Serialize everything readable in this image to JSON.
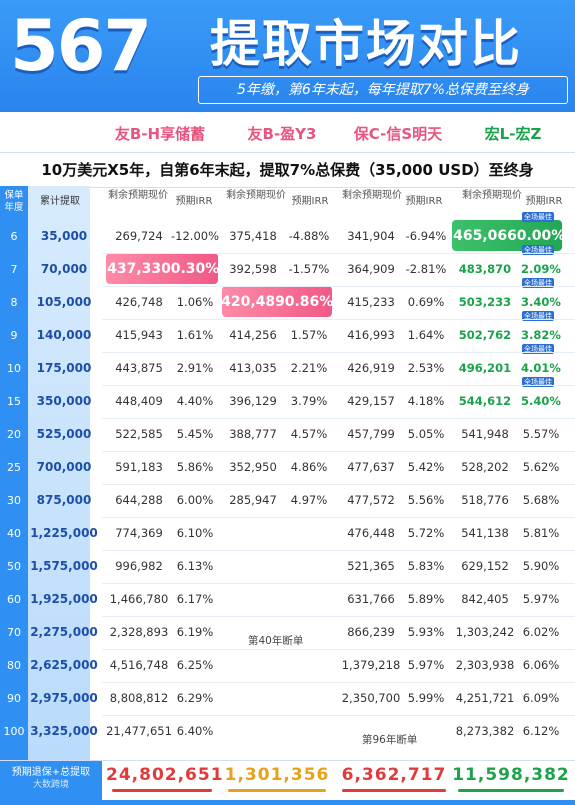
{
  "header": {
    "number": "567",
    "title": "提取市场对比",
    "subtitle": "5年缴，第6年末起，每年提取7%总保费至终身"
  },
  "products": [
    "友B-H享储蓄",
    "友B-盈Y3",
    "保C-信S明天",
    "宏L-宏Z"
  ],
  "description": "10万美元X5年，自第6年末起，提取7%总保费（35,000 USD）至终身",
  "columns": {
    "year": "保单年度",
    "cum": "累计提取",
    "value": "剩余预期现价",
    "irr": "预期IRR"
  },
  "badge": "全场最佳",
  "rows": [
    {
      "year": "6",
      "cum": "35,000",
      "p1": [
        "269,724",
        "-12.00%"
      ],
      "p2": [
        "375,418",
        "-4.88%"
      ],
      "p3": [
        "341,904",
        "-6.94%"
      ],
      "p4": [
        "465,066",
        "0.00%"
      ]
    },
    {
      "year": "7",
      "cum": "70,000",
      "p1": [
        "437,330",
        "0.30%"
      ],
      "p2": [
        "392,598",
        "-1.57%"
      ],
      "p3": [
        "364,909",
        "-2.81%"
      ],
      "p4": [
        "483,870",
        "2.09%"
      ]
    },
    {
      "year": "8",
      "cum": "105,000",
      "p1": [
        "426,748",
        "1.06%"
      ],
      "p2": [
        "420,489",
        "0.86%"
      ],
      "p3": [
        "415,233",
        "0.69%"
      ],
      "p4": [
        "503,233",
        "3.40%"
      ]
    },
    {
      "year": "9",
      "cum": "140,000",
      "p1": [
        "415,943",
        "1.61%"
      ],
      "p2": [
        "414,256",
        "1.57%"
      ],
      "p3": [
        "416,993",
        "1.64%"
      ],
      "p4": [
        "502,762",
        "3.82%"
      ]
    },
    {
      "year": "10",
      "cum": "175,000",
      "p1": [
        "443,875",
        "2.91%"
      ],
      "p2": [
        "413,035",
        "2.21%"
      ],
      "p3": [
        "426,919",
        "2.53%"
      ],
      "p4": [
        "496,201",
        "4.01%"
      ]
    },
    {
      "year": "15",
      "cum": "350,000",
      "p1": [
        "448,409",
        "4.40%"
      ],
      "p2": [
        "396,129",
        "3.79%"
      ],
      "p3": [
        "429,157",
        "4.18%"
      ],
      "p4": [
        "544,612",
        "5.40%"
      ]
    },
    {
      "year": "20",
      "cum": "525,000",
      "p1": [
        "522,585",
        "5.45%"
      ],
      "p2": [
        "388,777",
        "4.57%"
      ],
      "p3": [
        "457,799",
        "5.05%"
      ],
      "p4": [
        "541,948",
        "5.57%"
      ]
    },
    {
      "year": "25",
      "cum": "700,000",
      "p1": [
        "591,183",
        "5.86%"
      ],
      "p2": [
        "352,950",
        "4.86%"
      ],
      "p3": [
        "477,637",
        "5.42%"
      ],
      "p4": [
        "528,202",
        "5.62%"
      ]
    },
    {
      "year": "30",
      "cum": "875,000",
      "p1": [
        "644,288",
        "6.00%"
      ],
      "p2": [
        "285,947",
        "4.97%"
      ],
      "p3": [
        "477,572",
        "5.56%"
      ],
      "p4": [
        "518,776",
        "5.68%"
      ]
    },
    {
      "year": "40",
      "cum": "1,225,000",
      "p1": [
        "774,369",
        "6.10%"
      ],
      "p2": [
        "",
        ""
      ],
      "p3": [
        "476,448",
        "5.72%"
      ],
      "p4": [
        "541,138",
        "5.81%"
      ]
    },
    {
      "year": "50",
      "cum": "1,575,000",
      "p1": [
        "996,982",
        "6.13%"
      ],
      "p2": [
        "",
        ""
      ],
      "p3": [
        "521,365",
        "5.83%"
      ],
      "p4": [
        "629,152",
        "5.90%"
      ]
    },
    {
      "year": "60",
      "cum": "1,925,000",
      "p1": [
        "1,466,780",
        "6.17%"
      ],
      "p2": [
        "",
        ""
      ],
      "p3": [
        "631,766",
        "5.89%"
      ],
      "p4": [
        "842,405",
        "5.97%"
      ]
    },
    {
      "year": "70",
      "cum": "2,275,000",
      "p1": [
        "2,328,893",
        "6.19%"
      ],
      "p2": [
        "",
        ""
      ],
      "p3": [
        "866,239",
        "5.93%"
      ],
      "p4": [
        "1,303,242",
        "6.02%"
      ]
    },
    {
      "year": "80",
      "cum": "2,625,000",
      "p1": [
        "4,516,748",
        "6.25%"
      ],
      "p2": [
        "",
        ""
      ],
      "p3": [
        "1,379,218",
        "5.97%"
      ],
      "p4": [
        "2,303,938",
        "6.06%"
      ]
    },
    {
      "year": "90",
      "cum": "2,975,000",
      "p1": [
        "8,808,812",
        "6.29%"
      ],
      "p2": [
        "",
        ""
      ],
      "p3": [
        "2,350,700",
        "5.99%"
      ],
      "p4": [
        "4,251,721",
        "6.09%"
      ]
    },
    {
      "year": "100",
      "cum": "3,325,000",
      "p1": [
        "21,477,651",
        "6.40%"
      ],
      "p2": [
        "",
        ""
      ],
      "p3": [
        "",
        ""
      ],
      "p4": [
        "8,273,382",
        "6.12%"
      ]
    }
  ],
  "notes": {
    "p2_end": "第40年断单",
    "p3_end": "第96年断单"
  },
  "footer": {
    "label": "预期退保+总提取",
    "watermark": "大数跨境",
    "totals": [
      "24,802,651",
      "1,301,356",
      "6,362,717",
      "11,598,382"
    ]
  },
  "colors": {
    "brand_blue": "#2f8ff2",
    "pink": "#e8557f",
    "gold": "#e6a21b",
    "red": "#e03a3a",
    "green": "#1aa34a"
  }
}
